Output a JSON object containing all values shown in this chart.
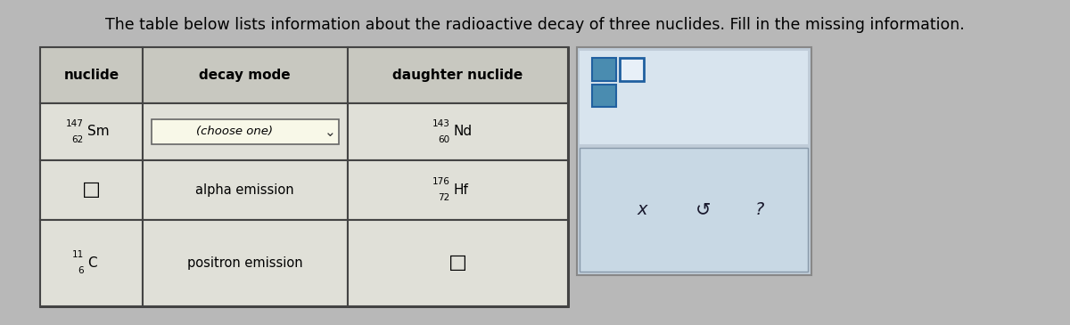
{
  "title": "The table below lists information about the radioactive decay of three nuclides. Fill in the missing information.",
  "title_fontsize": 12.5,
  "bg_color": "#b8b8b8",
  "col_headers": [
    "nuclide",
    "decay mode",
    "daughter nuclide"
  ],
  "row1": {
    "nuclide_mass": "147",
    "nuclide_num": "62",
    "nuclide_sym": "Sm",
    "decay": "(choose one)",
    "daughter_mass": "143",
    "daughter_num": "60",
    "daughter_sym": "Nd"
  },
  "row2": {
    "nuclide": "□",
    "decay": "alpha emission",
    "daughter_mass": "176",
    "daughter_num": "72",
    "daughter_sym": "Hf"
  },
  "row3": {
    "nuclide_mass": "11",
    "nuclide_num": "6",
    "nuclide_sym": "C",
    "decay": "positron emission",
    "daughter": "□"
  }
}
